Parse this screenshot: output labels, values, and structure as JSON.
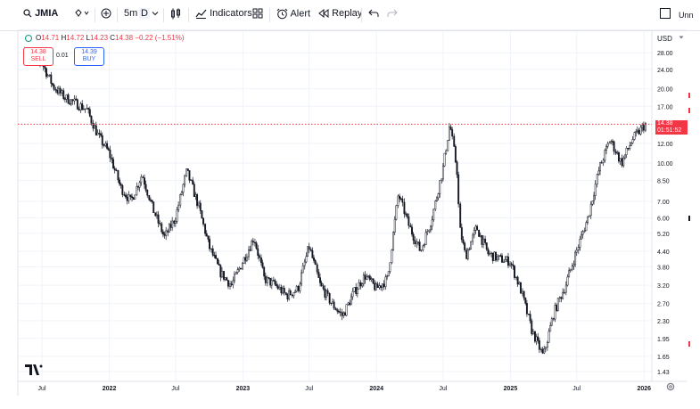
{
  "toolbar": {
    "symbol": "JMIA",
    "interval": "5m",
    "range": "D",
    "indicators_label": "Indicators",
    "alert_label": "Alert",
    "replay_label": "Replay",
    "unnamed_label": "Unn",
    "icons": [
      "search-icon",
      "price-alert-icon",
      "add-symbol-icon",
      "chart-type-icon",
      "layouts-icon",
      "alarm-icon",
      "replay-icon",
      "undo-icon",
      "redo-icon"
    ]
  },
  "legend": {
    "open_label": "O",
    "open": "14.71",
    "high_label": "H",
    "high": "14.72",
    "low_label": "L",
    "low": "14.23",
    "close_label": "C",
    "close": "14.38",
    "change": "−0.22",
    "change_pct": "(−1.51%)"
  },
  "trade": {
    "sell_price": "14.38",
    "sell_label": "SELL",
    "spread": "0.01",
    "buy_price": "14.39",
    "buy_label": "BUY"
  },
  "price_axis": {
    "currency": "USD",
    "last_price": "14.38",
    "countdown": "01:51:52"
  },
  "colors": {
    "up": "#089981",
    "down": "#f23645",
    "buy": "#2962ff",
    "grid": "#f0f3fa",
    "candle": "#131722"
  },
  "chart_data": {
    "type": "line",
    "title": "",
    "scale": "log",
    "ylim": [
      1.35,
      31
    ],
    "y_ticks": [
      "28.00",
      "24.00",
      "20.00",
      "17.00",
      "14.38",
      "12.00",
      "10.00",
      "8.50",
      "7.00",
      "6.00",
      "5.20",
      "4.40",
      "3.80",
      "3.20",
      "2.70",
      "2.30",
      "1.95",
      "1.65",
      "1.43"
    ],
    "x_ticks": [
      "Jul",
      "2022",
      "Jul",
      "2023",
      "Jul",
      "2024",
      "Jul",
      "2025",
      "Jul",
      "2026"
    ],
    "last_price": 14.38,
    "series": [
      {
        "values": [
          [
            "2021-05-15",
            28.5
          ],
          [
            "2021-06-15",
            26.0
          ],
          [
            "2021-07-01",
            25.5
          ],
          [
            "2021-08-01",
            20.5
          ],
          [
            "2021-09-01",
            18.5
          ],
          [
            "2021-10-01",
            17.5
          ],
          [
            "2021-11-01",
            16.5
          ],
          [
            "2021-12-01",
            13.0
          ],
          [
            "2022-01-01",
            11.0
          ],
          [
            "2022-02-01",
            8.0
          ],
          [
            "2022-03-01",
            7.0
          ],
          [
            "2022-04-01",
            9.0
          ],
          [
            "2022-05-01",
            6.5
          ],
          [
            "2022-06-01",
            5.0
          ],
          [
            "2022-07-01",
            6.0
          ],
          [
            "2022-08-01",
            9.3
          ],
          [
            "2022-09-01",
            6.8
          ],
          [
            "2022-10-01",
            4.6
          ],
          [
            "2022-11-01",
            3.6
          ],
          [
            "2022-12-01",
            3.2
          ],
          [
            "2023-01-01",
            4.0
          ],
          [
            "2023-02-01",
            5.0
          ],
          [
            "2023-03-01",
            3.4
          ],
          [
            "2023-04-01",
            3.2
          ],
          [
            "2023-05-01",
            2.9
          ],
          [
            "2023-06-01",
            3.1
          ],
          [
            "2023-07-01",
            4.6
          ],
          [
            "2023-08-01",
            3.2
          ],
          [
            "2023-09-01",
            2.7
          ],
          [
            "2023-10-01",
            2.4
          ],
          [
            "2023-11-01",
            3.0
          ],
          [
            "2023-12-01",
            3.5
          ],
          [
            "2024-01-01",
            3.1
          ],
          [
            "2024-02-01",
            3.4
          ],
          [
            "2024-03-01",
            7.5
          ],
          [
            "2024-04-01",
            5.5
          ],
          [
            "2024-05-01",
            4.4
          ],
          [
            "2024-06-01",
            6.0
          ],
          [
            "2024-07-01",
            9.5
          ],
          [
            "2024-07-20",
            14.5
          ],
          [
            "2024-08-10",
            9.0
          ],
          [
            "2024-08-15",
            5.5
          ],
          [
            "2024-09-01",
            4.2
          ],
          [
            "2024-10-01",
            5.5
          ],
          [
            "2024-11-01",
            4.3
          ],
          [
            "2024-12-01",
            4.1
          ],
          [
            "2025-01-01",
            4.0
          ],
          [
            "2025-02-01",
            3.0
          ],
          [
            "2025-03-01",
            2.1
          ],
          [
            "2025-04-01",
            1.65
          ],
          [
            "2025-05-01",
            2.5
          ],
          [
            "2025-06-01",
            3.2
          ],
          [
            "2025-07-01",
            4.4
          ],
          [
            "2025-08-01",
            6.0
          ],
          [
            "2025-09-01",
            9.5
          ],
          [
            "2025-10-01",
            12.5
          ],
          [
            "2025-11-01",
            10.0
          ],
          [
            "2025-12-01",
            12.5
          ],
          [
            "2026-01-05",
            14.38
          ]
        ]
      }
    ]
  }
}
